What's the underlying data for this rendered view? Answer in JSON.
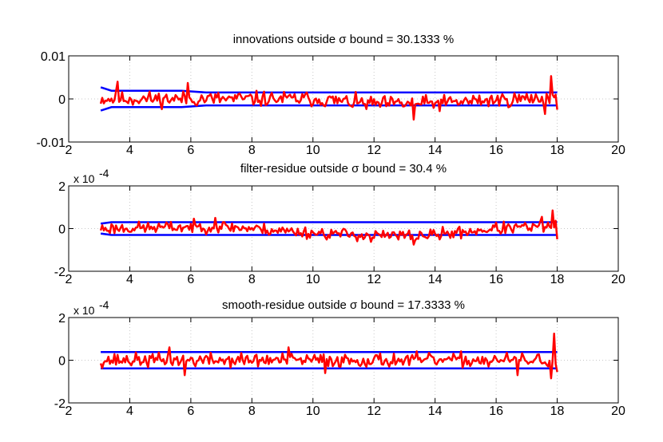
{
  "chart_data": [
    {
      "type": "line",
      "title": "innovations outside σ bound = 30.1333 %",
      "xlim": [
        2,
        20
      ],
      "ylim": [
        -0.01,
        0.01
      ],
      "xticks": [
        2,
        4,
        6,
        8,
        10,
        12,
        14,
        16,
        18,
        20
      ],
      "xtick_labels": [
        "2",
        "4",
        "6",
        "8",
        "10",
        "12",
        "14",
        "16",
        "18",
        "20"
      ],
      "yticks": [
        -0.01,
        0,
        0.01
      ],
      "ytick_labels": [
        "-0.01",
        "0",
        "0.01"
      ],
      "exponent_label": "",
      "grid": true,
      "bound": {
        "x": [
          3.05,
          3.4,
          4,
          5,
          5.7,
          6.5,
          8,
          10,
          12,
          14,
          16,
          18
        ],
        "y": [
          0.0027,
          0.0019,
          0.0019,
          0.0019,
          0.0019,
          0.0015,
          0.0015,
          0.0015,
          0.0015,
          0.0015,
          0.0015,
          0.0015
        ]
      },
      "residual": {
        "x_start": 3.05,
        "x_end": 18.0,
        "n": 300,
        "amplitude": 0.0015,
        "seed": 11,
        "segments": [
          [
            3.0,
            0.0
          ],
          [
            10.0,
            0.0
          ],
          [
            12.0,
            -0.0012
          ],
          [
            14.0,
            -0.001
          ],
          [
            15.5,
            -0.0004
          ],
          [
            18.0,
            0.0003
          ]
        ],
        "spikes": [
          [
            3.6,
            0.004
          ],
          [
            5.9,
            0.0037
          ],
          [
            13.3,
            -0.0048
          ],
          [
            17.6,
            -0.0035
          ],
          [
            17.8,
            0.0053
          ],
          [
            18.0,
            -0.0025
          ]
        ]
      },
      "residual_color": "#ff0000",
      "bound_color": "#0000ff"
    },
    {
      "type": "line",
      "title": "filter-residue outside σ bound = 30.4 %",
      "xlim": [
        2,
        20
      ],
      "ylim": [
        -2,
        2
      ],
      "xticks": [
        2,
        4,
        6,
        8,
        10,
        12,
        14,
        16,
        18,
        20
      ],
      "xtick_labels": [
        "2",
        "4",
        "6",
        "8",
        "10",
        "12",
        "14",
        "16",
        "18",
        "20"
      ],
      "yticks": [
        -2,
        0,
        2
      ],
      "ytick_labels": [
        "-2",
        "0",
        "2"
      ],
      "exponent_label": "x 10",
      "exponent_power": "-4",
      "grid": true,
      "bound": {
        "x": [
          3.05,
          3.4,
          4,
          5,
          5.7,
          6.5,
          8,
          10,
          12,
          14,
          16,
          18
        ],
        "y": [
          0.23,
          0.3,
          0.3,
          0.3,
          0.3,
          0.3,
          0.3,
          0.3,
          0.3,
          0.3,
          0.3,
          0.3
        ]
      },
      "residual": {
        "x_start": 3.05,
        "x_end": 18.0,
        "n": 300,
        "amplitude": 0.24,
        "seed": 23,
        "segments": [
          [
            3.0,
            0.0
          ],
          [
            7.0,
            0.1
          ],
          [
            10.0,
            -0.2
          ],
          [
            12.5,
            -0.35
          ],
          [
            14.0,
            -0.3
          ],
          [
            16.0,
            0.0
          ],
          [
            18.0,
            0.1
          ]
        ],
        "spikes": [
          [
            6.8,
            0.5
          ],
          [
            11.9,
            -0.62
          ],
          [
            13.3,
            -0.75
          ],
          [
            17.5,
            0.55
          ],
          [
            17.85,
            0.85
          ],
          [
            18.0,
            -0.5
          ]
        ]
      },
      "residual_color": "#ff0000",
      "bound_color": "#0000ff"
    },
    {
      "type": "line",
      "title": "smooth-residue outside σ bound = 17.3333 %",
      "xlim": [
        2,
        20
      ],
      "ylim": [
        -2,
        2
      ],
      "xticks": [
        2,
        4,
        6,
        8,
        10,
        12,
        14,
        16,
        18,
        20
      ],
      "xtick_labels": [
        "2",
        "4",
        "6",
        "8",
        "10",
        "12",
        "14",
        "16",
        "18",
        "20"
      ],
      "yticks": [
        -2,
        0,
        2
      ],
      "ytick_labels": [
        "-2",
        "0",
        "2"
      ],
      "exponent_label": "x 10",
      "exponent_power": "-4",
      "grid": true,
      "bound": {
        "x": [
          3.05,
          4,
          6,
          8,
          10,
          12,
          14,
          16,
          18
        ],
        "y": [
          0.38,
          0.38,
          0.38,
          0.38,
          0.38,
          0.38,
          0.38,
          0.38,
          0.38
        ]
      },
      "residual": {
        "x_start": 3.05,
        "x_end": 18.0,
        "n": 300,
        "amplitude": 0.28,
        "seed": 37,
        "segments": [
          [
            3.0,
            0.0
          ],
          [
            18.0,
            0.0
          ]
        ],
        "spikes": [
          [
            5.3,
            0.6
          ],
          [
            5.8,
            -0.7
          ],
          [
            9.2,
            0.6
          ],
          [
            10.4,
            -0.6
          ],
          [
            16.7,
            -0.7
          ],
          [
            17.8,
            -0.85
          ],
          [
            17.88,
            1.25
          ],
          [
            18.0,
            -0.55
          ]
        ]
      },
      "residual_color": "#ff0000",
      "bound_color": "#0000ff"
    }
  ]
}
